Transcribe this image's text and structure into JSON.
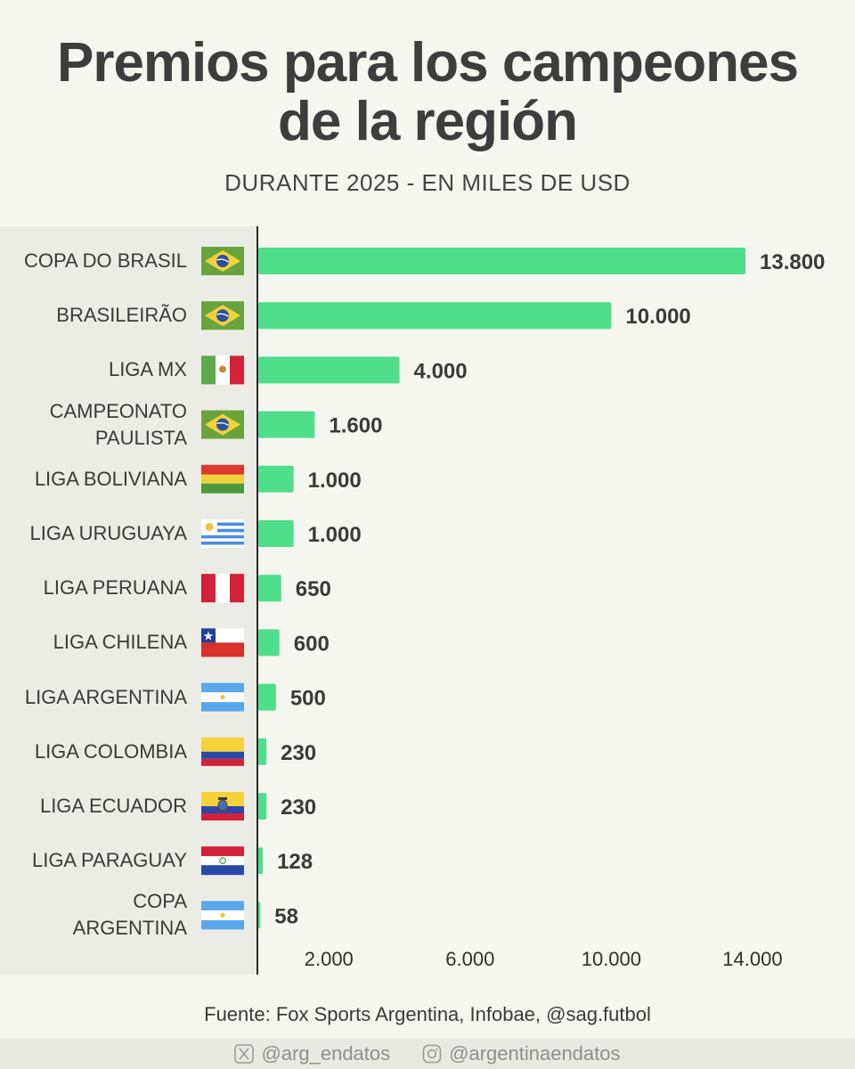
{
  "header": {
    "title_line1": "Premios para los campeones",
    "title_line2": "de la región",
    "subtitle": "DURANTE 2025 - EN MILES DE USD"
  },
  "chart_data": {
    "type": "bar",
    "orientation": "horizontal",
    "title": "Premios para los campeones de la región",
    "subtitle": "DURANTE 2025 - EN MILES DE USD",
    "categories": [
      {
        "label": "COPA DO BRASIL",
        "flag": "brazil-flag-icon",
        "value": 13800,
        "value_label": "13.800"
      },
      {
        "label": "BRASILEIRÃO",
        "flag": "brazil-flag-icon",
        "value": 10000,
        "value_label": "10.000"
      },
      {
        "label": "LIGA MX",
        "flag": "mexico-flag-icon",
        "value": 4000,
        "value_label": "4.000"
      },
      {
        "label": "CAMPEONATO\nPAULISTA",
        "flag": "brazil-flag-icon",
        "value": 1600,
        "value_label": "1.600"
      },
      {
        "label": "LIGA BOLIVIANA",
        "flag": "bolivia-flag-icon",
        "value": 1000,
        "value_label": "1.000"
      },
      {
        "label": "LIGA URUGUAYA",
        "flag": "uruguay-flag-icon",
        "value": 1000,
        "value_label": "1.000"
      },
      {
        "label": "LIGA PERUANA",
        "flag": "peru-flag-icon",
        "value": 650,
        "value_label": "650"
      },
      {
        "label": "LIGA CHILENA",
        "flag": "chile-flag-icon",
        "value": 600,
        "value_label": "600"
      },
      {
        "label": "LIGA ARGENTINA",
        "flag": "argentina-flag-icon",
        "value": 500,
        "value_label": "500"
      },
      {
        "label": "LIGA COLOMBIA",
        "flag": "colombia-flag-icon",
        "value": 230,
        "value_label": "230"
      },
      {
        "label": "LIGA ECUADOR",
        "flag": "ecuador-flag-icon",
        "value": 230,
        "value_label": "230"
      },
      {
        "label": "LIGA PARAGUAY",
        "flag": "paraguay-flag-icon",
        "value": 128,
        "value_label": "128"
      },
      {
        "label": "COPA\nARGENTINA",
        "flag": "argentina-flag-icon",
        "value": 58,
        "value_label": "58"
      }
    ],
    "x_ticks": [
      {
        "value": 2000,
        "label": "2.000"
      },
      {
        "value": 6000,
        "label": "6.000"
      },
      {
        "value": 10000,
        "label": "10.000"
      },
      {
        "value": 14000,
        "label": "14.000"
      }
    ],
    "xlim": [
      0,
      13800
    ],
    "bar_color": "#4fde8b",
    "grid": false,
    "legend": "none"
  },
  "footer": {
    "source": "Fuente: Fox Sports Argentina, Infobae, @sag.futbol",
    "x_handle": "@arg_endatos",
    "instagram_handle": "@argentinaendatos"
  }
}
